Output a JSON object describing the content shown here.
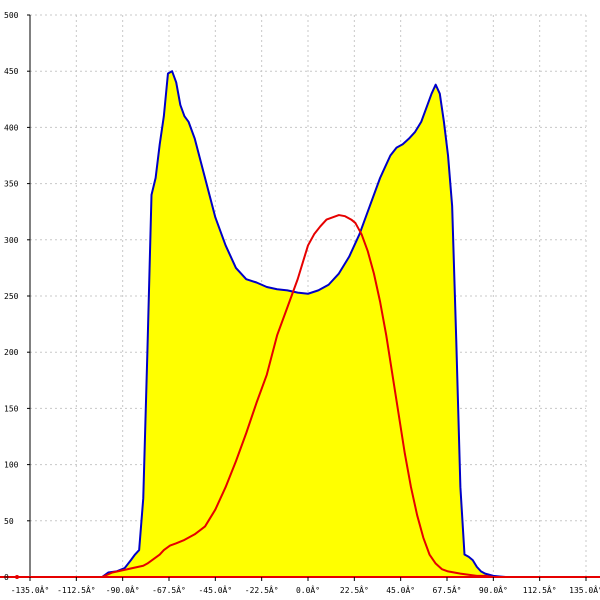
{
  "chart_data": {
    "type": "area",
    "title": "",
    "xlabel": "",
    "ylabel": "",
    "xlim": [
      -135,
      135
    ],
    "ylim": [
      0,
      500
    ],
    "grid": true,
    "x_ticks": [
      -135,
      -112.5,
      -90,
      -67.5,
      -45,
      -22.5,
      0,
      22.5,
      45,
      67.5,
      90,
      112.5,
      135
    ],
    "x_tick_labels": [
      "-135.0Â°",
      "-112.5Â°",
      "-90.0Â°",
      "-67.5Â°",
      "-45.0Â°",
      "-22.5Â°",
      "0.0Â°",
      "22.5Â°",
      "45.0Â°",
      "67.5Â°",
      "90.0Â°",
      "112.5Â°",
      "135.0Â°"
    ],
    "y_ticks": [
      0,
      50,
      100,
      150,
      200,
      250,
      300,
      350,
      400,
      450,
      500
    ],
    "y_tick_labels": [
      "0",
      "50",
      "100",
      "150",
      "200",
      "250",
      "300",
      "350",
      "400",
      "450",
      "500"
    ],
    "series": [
      {
        "color": "#0000c8",
        "fill": "#ffff00",
        "x": [
          -100,
          -97,
          -93,
          -89,
          -86,
          -84,
          -82,
          -80,
          -78,
          -76,
          -74,
          -72,
          -70,
          -68,
          -66,
          -64,
          -62,
          -60,
          -58,
          -55,
          -50,
          -45,
          -40,
          -35,
          -30,
          -25,
          -20,
          -15,
          -10,
          -5,
          0,
          5,
          10,
          15,
          20,
          25,
          30,
          35,
          40,
          43,
          46,
          49,
          52,
          55,
          58,
          60,
          62,
          64,
          66,
          68,
          70,
          72,
          74,
          76,
          78,
          80,
          82,
          84,
          86,
          88,
          90,
          93,
          96,
          100,
          105
        ],
        "y": [
          0,
          4,
          5,
          8,
          15,
          20,
          24,
          70,
          200,
          340,
          355,
          385,
          410,
          448,
          450,
          440,
          420,
          410,
          405,
          390,
          355,
          320,
          295,
          275,
          265,
          262,
          258,
          256,
          255,
          253,
          252,
          255,
          260,
          270,
          285,
          305,
          330,
          355,
          375,
          382,
          385,
          390,
          396,
          405,
          420,
          430,
          438,
          430,
          405,
          375,
          330,
          210,
          80,
          20,
          18,
          15,
          9,
          5,
          3,
          2,
          1,
          0.5,
          0,
          0,
          0
        ]
      },
      {
        "color": "#e60000",
        "fill": "none",
        "x": [
          -100,
          -95,
          -90,
          -85,
          -80,
          -78,
          -75,
          -72,
          -70,
          -67,
          -64,
          -60,
          -55,
          -50,
          -45,
          -40,
          -35,
          -30,
          -25,
          -20,
          -15,
          -10,
          -5,
          0,
          3,
          6,
          9,
          12,
          15,
          18,
          21,
          23,
          26,
          29,
          32,
          35,
          38,
          41,
          44,
          47,
          50,
          53,
          56,
          59,
          62,
          65,
          68,
          71,
          74,
          78,
          82,
          86,
          90,
          95,
          100,
          105
        ],
        "y": [
          0,
          4,
          6,
          8,
          10,
          12,
          16,
          20,
          24,
          28,
          30,
          33,
          38,
          45,
          60,
          80,
          103,
          128,
          155,
          180,
          215,
          240,
          265,
          295,
          305,
          312,
          318,
          320,
          322,
          321,
          318,
          315,
          305,
          290,
          270,
          245,
          215,
          180,
          145,
          110,
          80,
          55,
          35,
          20,
          12,
          7,
          5,
          4,
          3,
          2,
          1,
          1,
          0,
          0,
          0,
          0
        ]
      }
    ]
  }
}
